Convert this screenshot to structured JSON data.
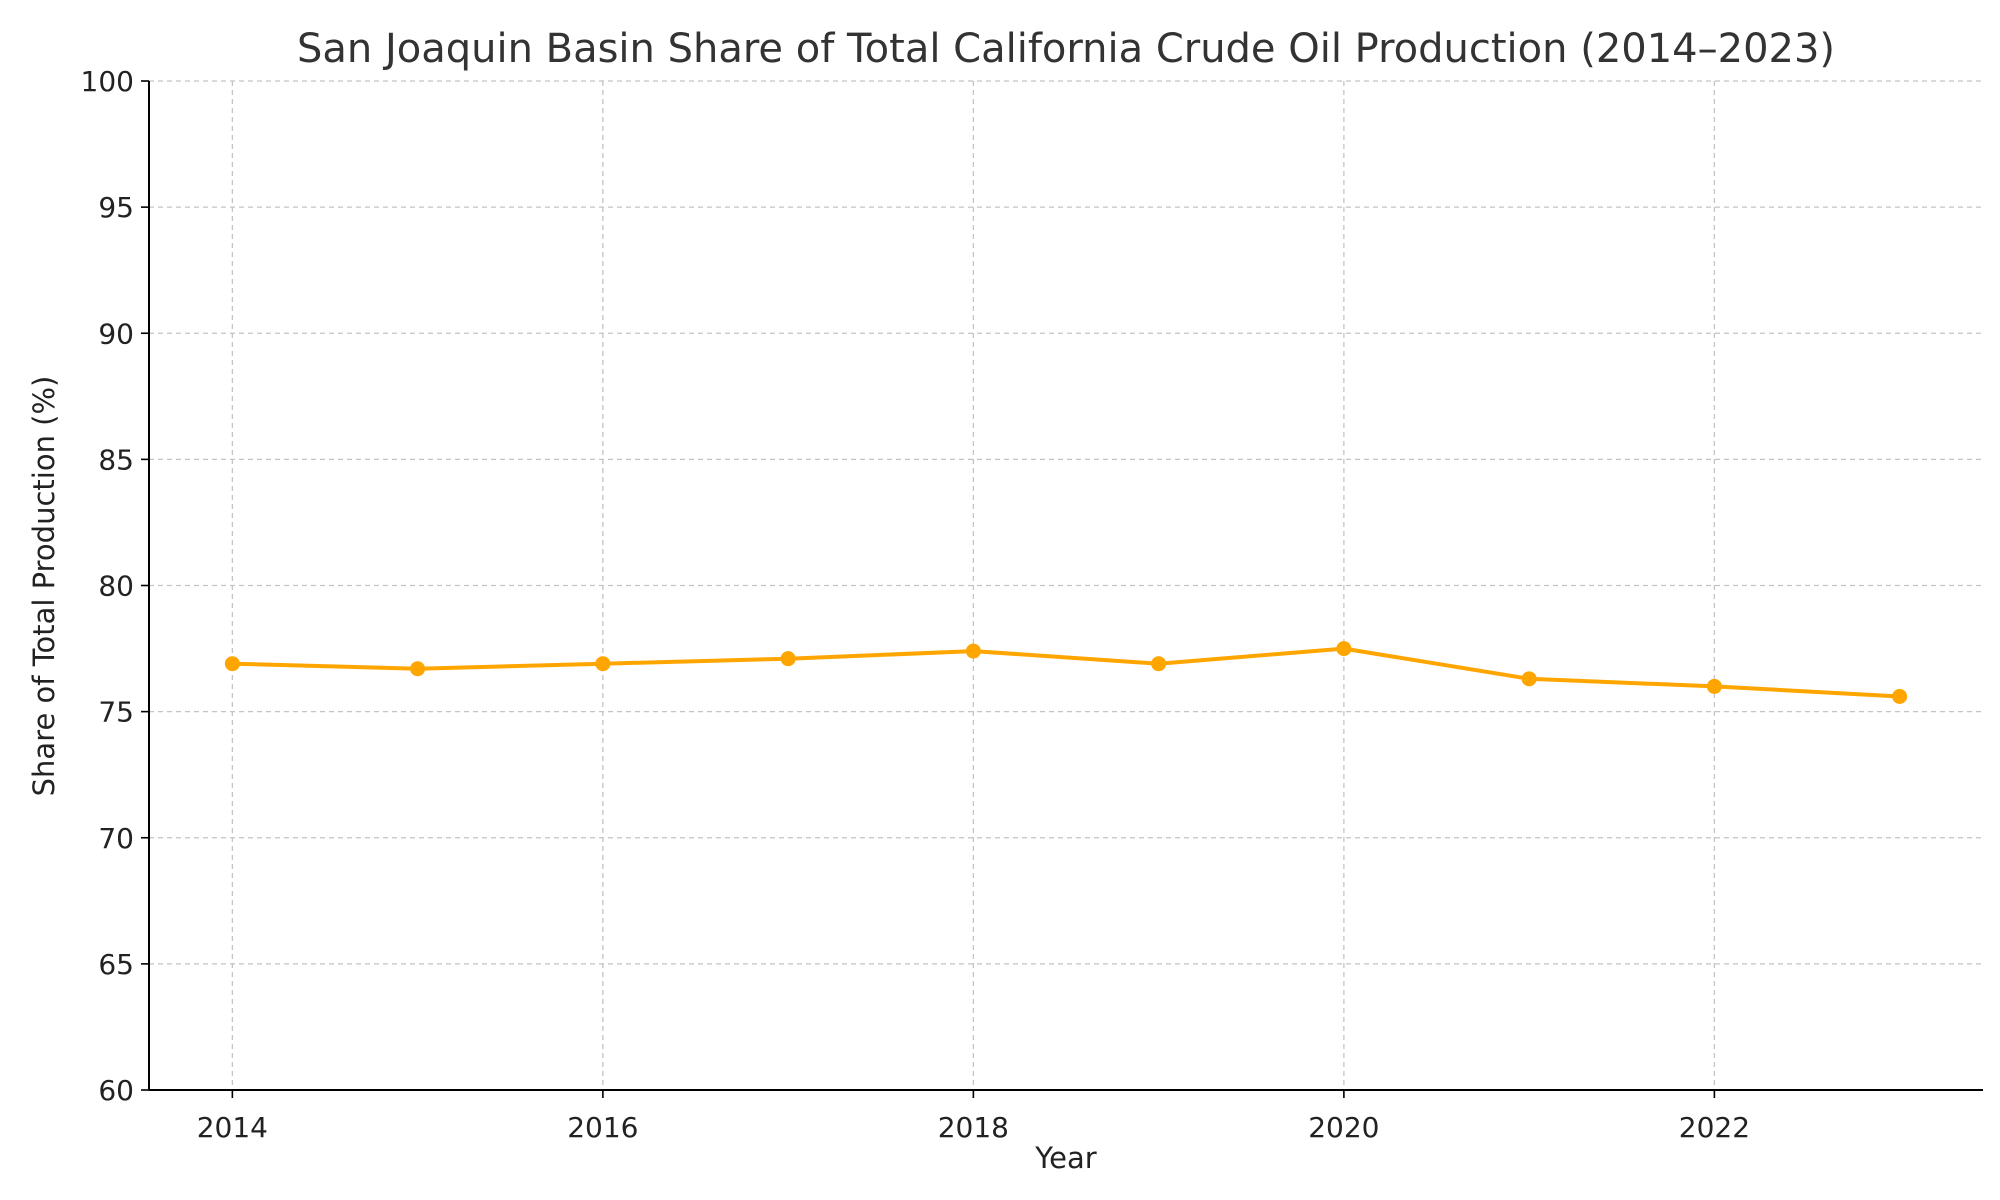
{
  "chart_data": {
    "type": "line",
    "title": "San Joaquin Basin Share of Total California Crude Oil Production (2014–2023)",
    "xlabel": "Year",
    "ylabel": "Share of Total Production (%)",
    "xlim": [
      2013.55,
      2023.45
    ],
    "ylim": [
      60,
      100
    ],
    "xticks": [
      2014,
      2016,
      2018,
      2020,
      2022
    ],
    "yticks": [
      60,
      65,
      70,
      75,
      80,
      85,
      90,
      95,
      100
    ],
    "grid": true,
    "series": [
      {
        "color": "#FFA500",
        "marker": "circle",
        "x": [
          2014,
          2015,
          2016,
          2017,
          2018,
          2019,
          2020,
          2021,
          2022,
          2023
        ],
        "y": [
          76.9,
          76.7,
          76.9,
          77.1,
          77.4,
          76.9,
          77.5,
          76.3,
          76.0,
          75.6
        ]
      }
    ]
  }
}
